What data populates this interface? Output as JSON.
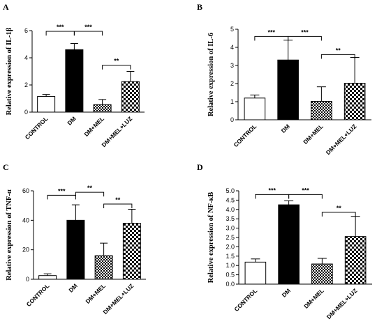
{
  "chart_data": [
    {
      "type": "bar",
      "panel_label": "A",
      "ylabel": "Relative expression of IL-1β",
      "categories": [
        "CONTROL",
        "DM",
        "DM+MEL",
        "DM+MEL+LUZ"
      ],
      "values": [
        1.15,
        4.6,
        0.55,
        2.25
      ],
      "errors": [
        0.15,
        0.45,
        0.38,
        0.75
      ],
      "ylim": [
        0,
        6
      ],
      "yticks": [
        "0",
        "2",
        "4",
        "6"
      ],
      "significance": [
        {
          "from": 0,
          "to": 1,
          "label": "***",
          "y": 5.95
        },
        {
          "from": 1,
          "to": 2,
          "label": "***",
          "y": 5.95
        },
        {
          "from": 2,
          "to": 3,
          "label": "**",
          "y": 3.45
        }
      ],
      "grid": false,
      "legend": "none"
    },
    {
      "type": "bar",
      "panel_label": "B",
      "ylabel": "Relative expression of IL-6",
      "categories": [
        "CONTROL",
        "DM",
        "DM+MEL",
        "DM+MEL+LUZ"
      ],
      "values": [
        1.2,
        3.3,
        1.02,
        2.02
      ],
      "errors": [
        0.17,
        1.1,
        0.8,
        1.42
      ],
      "ylim": [
        0,
        5
      ],
      "yticks": [
        "0",
        "1",
        "2",
        "3",
        "4",
        "5"
      ],
      "significance": [
        {
          "from": 0,
          "to": 1,
          "label": "***",
          "y": 4.6
        },
        {
          "from": 1,
          "to": 2,
          "label": "***",
          "y": 4.6
        },
        {
          "from": 2,
          "to": 3,
          "label": "**",
          "y": 3.6
        }
      ],
      "grid": false,
      "legend": "none"
    },
    {
      "type": "bar",
      "panel_label": "C",
      "ylabel": "Relative expression of TNF-α",
      "categories": [
        "CONTROL",
        "DM",
        "DM+MEL",
        "DM+MEL+LUZ"
      ],
      "values": [
        2.5,
        40,
        16,
        38
      ],
      "errors": [
        1.2,
        10.5,
        8.5,
        9.5
      ],
      "ylim": [
        0,
        60
      ],
      "yticks": [
        "0",
        "20",
        "40",
        "60"
      ],
      "significance": [
        {
          "from": 0,
          "to": 1,
          "label": "***",
          "y": 57
        },
        {
          "from": 1,
          "to": 2,
          "label": "**",
          "y": 59
        },
        {
          "from": 2,
          "to": 3,
          "label": "**",
          "y": 51
        }
      ],
      "grid": false,
      "legend": "none"
    },
    {
      "type": "bar",
      "panel_label": "D",
      "ylabel": "Relative expression of NF-κB",
      "categories": [
        "CONTROL",
        "DM",
        "DM+MEL",
        "DM+MEL+LUZ"
      ],
      "values": [
        1.18,
        4.25,
        1.08,
        2.55
      ],
      "errors": [
        0.17,
        0.22,
        0.3,
        1.08
      ],
      "ylim": [
        0,
        5
      ],
      "yticks": [
        "0.0",
        "0.5",
        "1.0",
        "1.5",
        "2.0",
        "2.5",
        "3.0",
        "3.5",
        "4.0",
        "4.5",
        "5.0"
      ],
      "significance": [
        {
          "from": 0,
          "to": 1,
          "label": "***",
          "y": 4.8
        },
        {
          "from": 1,
          "to": 2,
          "label": "***",
          "y": 4.8
        },
        {
          "from": 2,
          "to": 3,
          "label": "**",
          "y": 3.85
        }
      ],
      "grid": false,
      "legend": "none"
    }
  ],
  "bar_styles": [
    "white",
    "black",
    "dense-checker",
    "checker"
  ],
  "colors": {
    "ink": "#000000",
    "fill_dm": "#000000",
    "fill_control": "#ffffff"
  }
}
